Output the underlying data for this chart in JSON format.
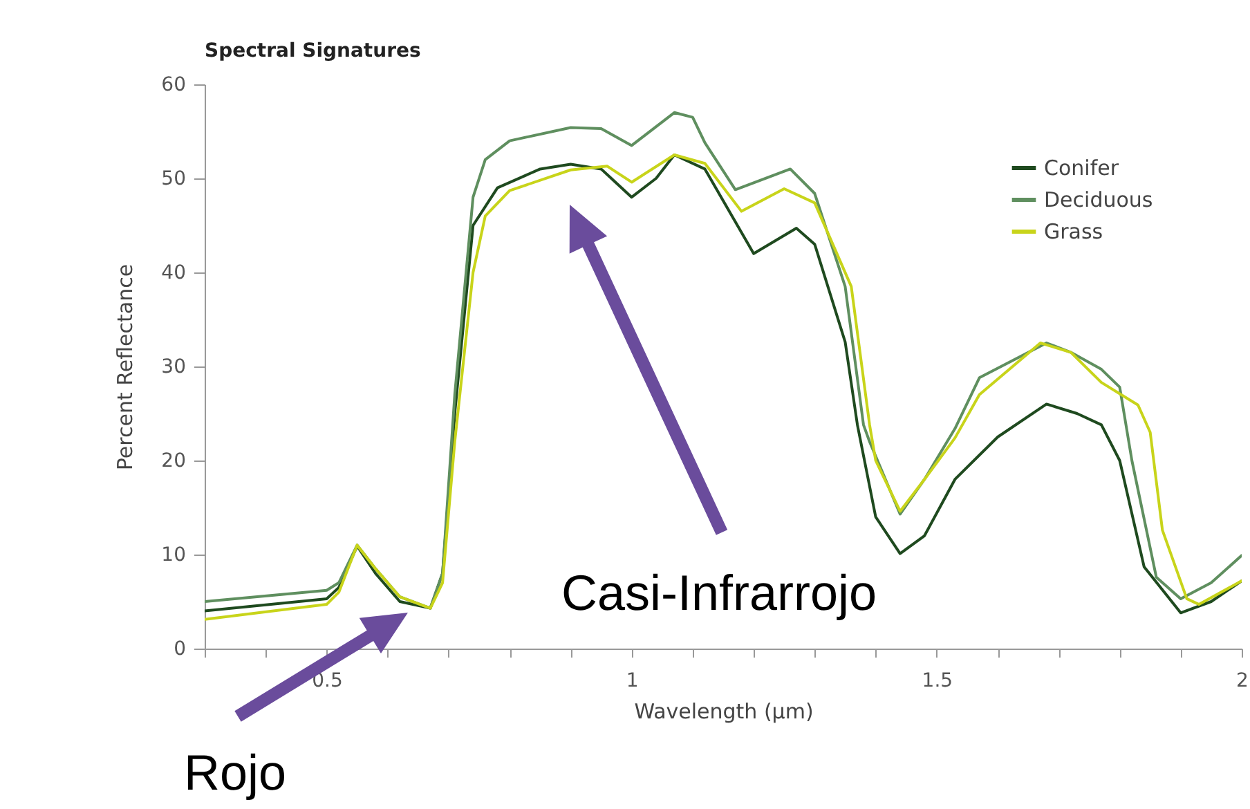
{
  "chart_data": {
    "type": "line",
    "title": "Spectral Signatures",
    "xlabel": "Wavelength (µm)",
    "ylabel": "Percent Reflectance",
    "xlim": [
      0.3,
      2.0
    ],
    "xticks": [
      {
        "value": 0.3,
        "label": null
      },
      {
        "value": 0.4,
        "label": null
      },
      0.5,
      {
        "value": 0.6,
        "label": null
      },
      {
        "value": 0.7,
        "label": null
      },
      {
        "value": 0.8,
        "label": null
      },
      {
        "value": 0.9,
        "label": null
      },
      1,
      {
        "value": 1.1,
        "label": null
      },
      {
        "value": 1.2,
        "label": null
      },
      {
        "value": 1.3,
        "label": null
      },
      {
        "value": 1.4,
        "label": null
      },
      1.5,
      {
        "value": 1.6,
        "label": null
      },
      {
        "value": 1.7,
        "label": null
      },
      {
        "value": 1.8,
        "label": null
      },
      {
        "value": 1.9,
        "label": null
      },
      2
    ],
    "ylim": [
      0,
      60
    ],
    "yticks": [
      0,
      10,
      20,
      30,
      40,
      50,
      60
    ],
    "grid": false,
    "legend": "top right",
    "marker": "none",
    "line_style": "solid",
    "series": [
      {
        "name": "Conifer",
        "color": "#1f4a1f",
        "x": [
          0.3,
          0.5,
          0.52,
          0.55,
          0.58,
          0.62,
          0.67,
          0.69,
          0.71,
          0.74,
          0.78,
          0.85,
          0.9,
          0.95,
          1.0,
          1.04,
          1.07,
          1.12,
          1.2,
          1.27,
          1.3,
          1.35,
          1.37,
          1.4,
          1.44,
          1.48,
          1.53,
          1.6,
          1.68,
          1.73,
          1.77,
          1.8,
          1.84,
          1.9,
          1.95,
          2.0
        ],
        "values": [
          4,
          5.3,
          6.5,
          10.9,
          8,
          5,
          4.3,
          8,
          25,
          45,
          49,
          51,
          51.5,
          51,
          48,
          50,
          52.5,
          51,
          42,
          44.7,
          43,
          32.6,
          23.8,
          14,
          10.1,
          12,
          18,
          22.5,
          26,
          25,
          23.8,
          20,
          8.7,
          3.8,
          5,
          7.2
        ]
      },
      {
        "name": "Deciduous",
        "color": "#5f8f5f",
        "x": [
          0.3,
          0.5,
          0.52,
          0.55,
          0.58,
          0.62,
          0.67,
          0.69,
          0.71,
          0.74,
          0.76,
          0.8,
          0.9,
          0.95,
          1.0,
          1.07,
          1.1,
          1.12,
          1.17,
          1.26,
          1.3,
          1.35,
          1.38,
          1.39,
          1.44,
          1.48,
          1.53,
          1.57,
          1.68,
          1.72,
          1.77,
          1.8,
          1.82,
          1.86,
          1.9,
          1.95,
          2.0
        ],
        "values": [
          5,
          6.2,
          7,
          11,
          8.5,
          5.5,
          4.3,
          8,
          27,
          48,
          52,
          54,
          55.4,
          55.3,
          53.5,
          57,
          56.5,
          53.8,
          48.8,
          51,
          48.4,
          38.5,
          23.8,
          22,
          14.3,
          18,
          23.4,
          28.8,
          32.5,
          31.5,
          29.7,
          27.8,
          20,
          7.6,
          5.3,
          7,
          9.9
        ]
      },
      {
        "name": "Grass",
        "color": "#c8d41a",
        "x": [
          0.3,
          0.5,
          0.52,
          0.55,
          0.58,
          0.62,
          0.67,
          0.69,
          0.71,
          0.74,
          0.76,
          0.8,
          0.9,
          0.96,
          1.0,
          1.07,
          1.12,
          1.18,
          1.25,
          1.3,
          1.36,
          1.39,
          1.4,
          1.44,
          1.48,
          1.53,
          1.57,
          1.67,
          1.72,
          1.77,
          1.83,
          1.85,
          1.87,
          1.91,
          1.93,
          2.0
        ],
        "values": [
          3.1,
          4.7,
          6,
          11,
          8.5,
          5.5,
          4.3,
          7,
          22,
          40,
          46,
          48.7,
          50.9,
          51.3,
          49.6,
          52.5,
          51.6,
          46.5,
          48.9,
          47.4,
          38.5,
          23.8,
          20,
          14.6,
          18,
          22.4,
          27,
          32.5,
          31.5,
          28.3,
          25.9,
          23,
          12.6,
          5.3,
          4.7,
          7.2
        ]
      }
    ],
    "annotations": [
      "Casi-Infrarrojo",
      "Rojo"
    ]
  }
}
